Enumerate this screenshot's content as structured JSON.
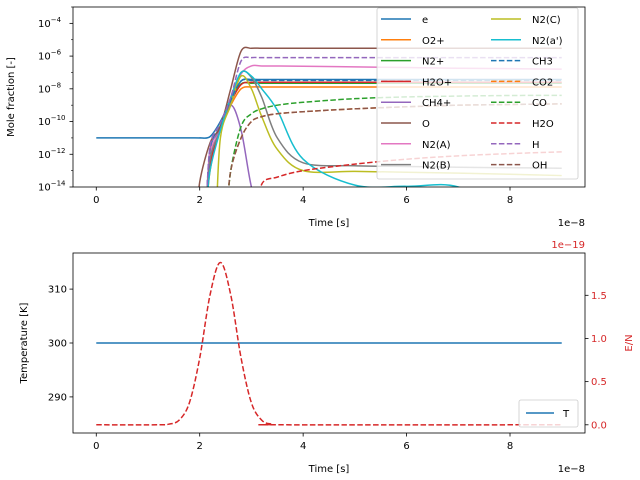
{
  "chart_data": [
    {
      "type": "line",
      "xlabel": "Time [s]",
      "ylabel": "Mole fraction [-]",
      "x_offset_label": "1e−8",
      "xlim": [
        -0.45,
        9.45
      ],
      "ylim": [
        1e-14,
        0.001
      ],
      "yscale": "log",
      "x_ticks": [
        0,
        2,
        4,
        6,
        8
      ],
      "y_ticks": [
        -14,
        -12,
        -10,
        -8,
        -6,
        -4
      ],
      "y_tick_base": "10",
      "grid": false,
      "legend_placement": "top-right",
      "legend_columns": 2,
      "x": [
        0,
        1.9,
        2.0,
        2.2,
        2.4,
        2.6,
        2.8,
        3.0,
        3.2,
        3.5,
        4.0,
        5.0,
        6.0,
        7.0,
        8.0,
        9.0
      ],
      "series": [
        {
          "name": "e",
          "color": "#1f77b4",
          "dash": false,
          "values": [
            1e-11,
            1e-11,
            1e-11,
            1.2e-11,
            1e-10,
            2e-09,
            3e-08,
            3.7e-08,
            3.7e-08,
            3.7e-08,
            3.7e-08,
            3.7e-08,
            3.7e-08,
            3.7e-08,
            3.7e-08,
            3.7e-08
          ]
        },
        {
          "name": "O2+",
          "color": "#ff7f0e",
          "dash": false,
          "values": [
            null,
            null,
            null,
            1e-13,
            5e-11,
            1e-09,
            1e-08,
            1.3e-08,
            1.3e-08,
            1.3e-08,
            1.3e-08,
            1.3e-08,
            1.3e-08,
            1.3e-08,
            1.3e-08,
            1.3e-08
          ]
        },
        {
          "name": "N2+",
          "color": "#2ca02c",
          "dash": false,
          "values": [
            null,
            null,
            null,
            3e-13,
            6e-11,
            2e-09,
            2e-08,
            2.2e-08,
            2.2e-08,
            2.2e-08,
            2.2e-08,
            2.2e-08,
            2.2e-08,
            2.2e-08,
            2.2e-08,
            2.2e-08
          ]
        },
        {
          "name": "H2O+",
          "color": "#d62728",
          "dash": false,
          "values": [
            null,
            null,
            null,
            2e-13,
            5e-11,
            1.5e-09,
            1.8e-08,
            2.5e-08,
            2.5e-08,
            2.5e-08,
            2.5e-08,
            2.5e-08,
            2.5e-08,
            2.5e-08,
            2.5e-08,
            2.5e-08
          ]
        },
        {
          "name": "CH4+",
          "color": "#9467bd",
          "dash": false,
          "values": [
            null,
            null,
            null,
            2e-12,
            3e-11,
            1e-09,
            3e-11,
            1e-14,
            null,
            null,
            null,
            null,
            null,
            null,
            null,
            null
          ]
        },
        {
          "name": "O",
          "color": "#8c564b",
          "dash": false,
          "values": [
            null,
            null,
            2e-14,
            5e-12,
            5e-11,
            1e-08,
            2e-06,
            3e-06,
            3e-06,
            3e-06,
            3e-06,
            3e-06,
            3e-06,
            3e-06,
            3e-06,
            3e-06
          ]
        },
        {
          "name": "N2(A)",
          "color": "#e377c2",
          "dash": false,
          "values": [
            null,
            null,
            null,
            1e-12,
            3e-11,
            2e-09,
            8e-08,
            2.5e-07,
            2.5e-07,
            2.5e-07,
            2.4e-07,
            2.2e-07,
            2e-07,
            1.8e-07,
            1.7e-07,
            1.6e-07
          ]
        },
        {
          "name": "N2(B)",
          "color": "#7f7f7f",
          "dash": false,
          "values": [
            null,
            null,
            null,
            5e-13,
            3e-11,
            2e-09,
            1e-07,
            5e-08,
            3e-09,
            1e-11,
            3e-13,
            2e-13,
            1.8e-13,
            1.6e-13,
            1.5e-13,
            1.4e-13
          ]
        },
        {
          "name": "N2(C)",
          "color": "#bcbd22",
          "dash": false,
          "values": [
            null,
            null,
            null,
            null,
            1e-11,
            1e-09,
            6e-08,
            1e-08,
            2e-10,
            2e-12,
            1e-13,
            9e-14,
            8e-14,
            7e-14,
            6e-14,
            5e-14
          ]
        },
        {
          "name": "N2(a')",
          "color": "#17becf",
          "dash": false,
          "values": [
            null,
            null,
            null,
            1e-13,
            3e-11,
            3e-09,
            1e-07,
            6e-08,
            1e-08,
            5e-10,
            5e-13,
            1.3e-14,
            1.1e-14,
            1e-14,
            null,
            null
          ]
        },
        {
          "name": "CH3",
          "color": "#1f77b4",
          "dash": true,
          "values": [
            null,
            null,
            null,
            2e-12,
            8e-11,
            2e-09,
            3e-08,
            3.3e-08,
            3.3e-08,
            3.3e-08,
            3.3e-08,
            3.3e-08,
            3.3e-08,
            3.3e-08,
            3.3e-08,
            3.3e-08
          ]
        },
        {
          "name": "CO2",
          "color": "#ff7f0e",
          "dash": true,
          "values": [
            null,
            null,
            null,
            null,
            null,
            1e-13,
            1e-11,
            1e-10,
            2e-10,
            3e-10,
            4e-10,
            6e-10,
            8e-10,
            1e-09,
            1.1e-09,
            1.2e-09
          ]
        },
        {
          "name": "CO",
          "color": "#2ca02c",
          "dash": true,
          "values": [
            null,
            null,
            null,
            null,
            null,
            1e-13,
            5e-11,
            3e-10,
            6e-10,
            1e-09,
            1.5e-09,
            2.5e-09,
            3.2e-09,
            3.6e-09,
            3.9e-09,
            4e-09
          ]
        },
        {
          "name": "H2O",
          "color": "#d62728",
          "dash": true,
          "values": [
            null,
            null,
            null,
            null,
            null,
            null,
            null,
            null,
            1.5e-14,
            4e-14,
            1e-13,
            2.5e-13,
            5e-13,
            8e-13,
            1.1e-12,
            1.4e-12
          ]
        },
        {
          "name": "H",
          "color": "#9467bd",
          "dash": true,
          "values": [
            null,
            null,
            null,
            3e-12,
            8e-11,
            3e-09,
            5e-07,
            8e-07,
            8e-07,
            8e-07,
            8e-07,
            8e-07,
            8e-07,
            8e-07,
            8e-07,
            8e-07
          ]
        },
        {
          "name": "OH",
          "color": "#8c564b",
          "dash": true,
          "values": [
            null,
            null,
            null,
            null,
            null,
            1e-13,
            1e-11,
            1e-10,
            2e-10,
            3e-10,
            4e-10,
            6e-10,
            8e-10,
            1e-09,
            1.1e-09,
            1.2e-09
          ]
        }
      ]
    },
    {
      "type": "line",
      "xlabel": "Time [s]",
      "ylabel": "Temperature [K]",
      "y2label": "E/N",
      "x_offset_label": "1e−8",
      "y2_offset_label": "1e−19",
      "xlim": [
        -0.45,
        9.45
      ],
      "ylim": [
        283.3,
        316.7
      ],
      "y2lim": [
        -0.095,
        1.99
      ],
      "x_ticks": [
        0,
        2,
        4,
        6,
        8
      ],
      "y_ticks": [
        290,
        300,
        310
      ],
      "y2_ticks": [
        "0.0",
        "0.5",
        "1.0",
        "1.5"
      ],
      "grid": false,
      "legend_placement": "lower-right",
      "y2_color": "#d62728",
      "series": [
        {
          "name": "T",
          "axis": "left",
          "color": "#1f77b4",
          "dash": false,
          "x": [
            0,
            9
          ],
          "values": [
            300,
            300
          ]
        },
        {
          "axis": "right",
          "color": "#d62728",
          "dash": true,
          "x": [
            0,
            1.2,
            1.4,
            1.6,
            1.8,
            2.0,
            2.2,
            2.4,
            2.6,
            2.8,
            3.0,
            3.2,
            3.4,
            3.6,
            9
          ],
          "values": [
            0,
            0,
            0.007,
            0.053,
            0.254,
            0.773,
            1.505,
            1.88,
            1.505,
            0.773,
            0.254,
            0.053,
            0.007,
            0,
            0
          ]
        }
      ]
    }
  ]
}
